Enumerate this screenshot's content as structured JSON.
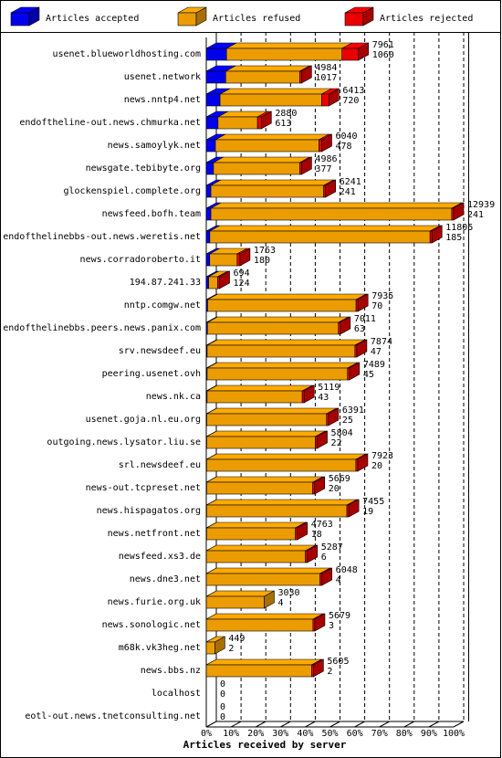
{
  "chart_data": {
    "type": "bar3d_stacked_horizontal",
    "x_label": "Articles received by server",
    "categories": [
      "usenet.blueworldhosting.com",
      "usenet.network",
      "news.nntp4.net",
      "endoftheline-out.news.chmurka.net",
      "news.samoylyk.net",
      "newsgate.tebibyte.org",
      "glockenspiel.complete.org",
      "newsfeed.bofh.team",
      "endofthelinebbs-out.news.weretis.net",
      "news.corradoroberto.it",
      "194.87.241.33",
      "nntp.comgw.net",
      "endofthelinebbs.peers.news.panix.com",
      "srv.newsdeef.eu",
      "peering.usenet.ovh",
      "news.nk.ca",
      "usenet.goja.nl.eu.org",
      "outgoing.news.lysator.liu.se",
      "srl.newsdeef.eu",
      "news-out.tcpreset.net",
      "news.hispagatos.org",
      "news.netfront.net",
      "newsfeed.xs3.de",
      "news.dne3.net",
      "news.furie.org.uk",
      "news.sonologic.net",
      "m68k.vk3heg.net",
      "news.bbs.nz",
      "localhost",
      "eotl-out.news.tnetconsulting.net"
    ],
    "totals": [
      7961,
      4984,
      6413,
      2880,
      6040,
      4986,
      6241,
      12939,
      11805,
      1763,
      694,
      7935,
      7011,
      7874,
      7489,
      5119,
      6391,
      5804,
      7923,
      5669,
      7455,
      4763,
      5287,
      6048,
      3030,
      5679,
      449,
      5605,
      0,
      0
    ],
    "series": [
      {
        "name": "Articles accepted",
        "color": "#0000ff",
        "values": [
          1060,
          1017,
          720,
          613,
          478,
          377,
          241,
          241,
          185,
          180,
          124,
          70,
          63,
          47,
          45,
          43,
          25,
          22,
          20,
          20,
          19,
          18,
          6,
          4,
          4,
          3,
          2,
          2,
          0,
          0
        ]
      },
      {
        "name": "Articles refused",
        "color": "#ffaa00",
        "values": [
          6041,
          3867,
          5313,
          2067,
          5412,
          4509,
          5900,
          12598,
          11520,
          1433,
          470,
          7765,
          6848,
          7727,
          7344,
          4976,
          6266,
          5682,
          7803,
          5549,
          7336,
          4645,
          5181,
          5944,
          3026,
          5576,
          447,
          5503,
          0,
          0
        ]
      },
      {
        "name": "Articles rejected",
        "color": "#ff0000",
        "values": [
          860,
          100,
          380,
          200,
          150,
          100,
          100,
          100,
          100,
          150,
          100,
          100,
          100,
          100,
          100,
          100,
          100,
          100,
          100,
          100,
          100,
          100,
          100,
          100,
          0,
          100,
          0,
          100,
          0,
          0
        ]
      }
    ],
    "xlim": [
      0,
      12939
    ],
    "xticks": [
      {
        "value": 0,
        "label": "0%"
      },
      {
        "value": 1293.9,
        "label": "10%"
      },
      {
        "value": 2587.8,
        "label": "20%"
      },
      {
        "value": 3881.7,
        "label": "30%"
      },
      {
        "value": 5175.6,
        "label": "40%"
      },
      {
        "value": 6469.5,
        "label": "50%"
      },
      {
        "value": 7763.4,
        "label": "60%"
      },
      {
        "value": 9057.3,
        "label": "70%"
      },
      {
        "value": 10351.2,
        "label": "80%"
      },
      {
        "value": 11645.1,
        "label": "90%"
      },
      {
        "value": 12939,
        "label": "100%"
      }
    ],
    "grid": true
  }
}
